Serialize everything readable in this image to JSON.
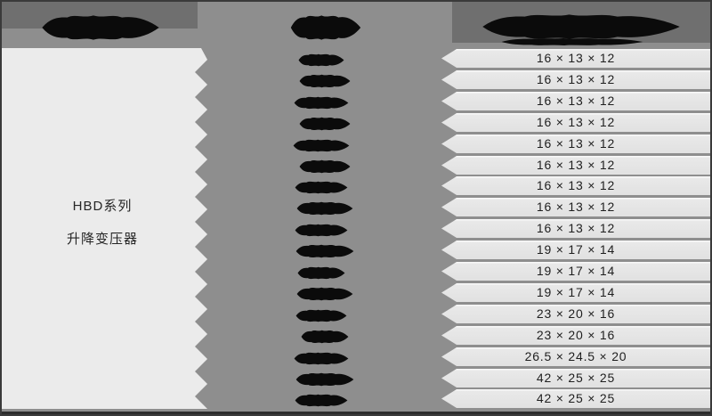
{
  "colors": {
    "background": "#8e8e8e",
    "header_band": "#6f6f6f",
    "panel": "#ebebeb",
    "row_bar": "#e4e4e4",
    "redaction": "#0b0b0b",
    "text": "#1f1f1f",
    "border": "#3a3a3a"
  },
  "product_cell": {
    "line1": "HBD系列",
    "line2": "升降变压器"
  },
  "redactions": {
    "header_blobs": 3,
    "model_cell_blobs": 17,
    "note_headers_visible": false
  },
  "chart_data": {
    "type": "table",
    "title": "",
    "columns": [
      {
        "header_redacted": true
      },
      {
        "header_redacted": true
      },
      {
        "header_redacted": true
      }
    ],
    "left_cell_lines": [
      "HBD系列",
      "升降变压器"
    ],
    "rows": [
      {
        "model": null,
        "size": "16 × 13 × 12"
      },
      {
        "model": null,
        "size": "16 × 13 × 12"
      },
      {
        "model": null,
        "size": "16 × 13 × 12"
      },
      {
        "model": null,
        "size": "16 × 13 × 12"
      },
      {
        "model": null,
        "size": "16 × 13 × 12"
      },
      {
        "model": null,
        "size": "16 × 13 × 12"
      },
      {
        "model": null,
        "size": "16 × 13 × 12"
      },
      {
        "model": null,
        "size": "16 × 13 × 12"
      },
      {
        "model": null,
        "size": "16 × 13 × 12"
      },
      {
        "model": null,
        "size": "19 × 17 × 14"
      },
      {
        "model": null,
        "size": "19 × 17 × 14"
      },
      {
        "model": null,
        "size": "19 × 17 × 14"
      },
      {
        "model": null,
        "size": "23 × 20 × 16"
      },
      {
        "model": null,
        "size": "23 × 20 × 16"
      },
      {
        "model": null,
        "size": "26.5 × 24.5 × 20"
      },
      {
        "model": null,
        "size": "42 × 25 × 25"
      },
      {
        "model": null,
        "size": "42 × 25 × 25"
      }
    ]
  }
}
